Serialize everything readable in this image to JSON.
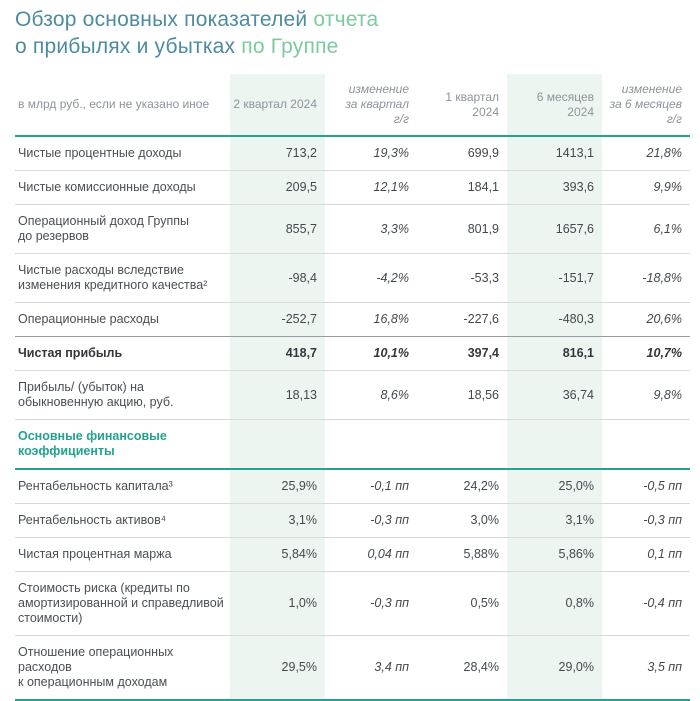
{
  "title": {
    "line1_main": "Обзор основных показателей ",
    "line1_accent": "отчета",
    "line2_main": "о прибылях и убытках ",
    "line2_accent": "по Группе"
  },
  "colors": {
    "title_main": "#4d8ba1",
    "title_accent": "#7bcc9b",
    "teal_line": "#23a38e",
    "section_text": "#23a38e",
    "shaded_column_bg": "#edf5f1",
    "header_text": "#8d939a",
    "body_text": "#43484d",
    "row_line": "#d7dadc",
    "strong_line": "#969ba1"
  },
  "table": {
    "unit_note": "в млрд руб., если не указано иное",
    "columns": [
      {
        "label": "2 квартал 2024",
        "shaded": true,
        "italic": false
      },
      {
        "label": "изменение\nза квартал\nг/г",
        "shaded": false,
        "italic": true
      },
      {
        "label": "1 квартал 2024",
        "shaded": false,
        "italic": false
      },
      {
        "label": "6 месяцев\n2024",
        "shaded": true,
        "italic": false
      },
      {
        "label": "изменение\nза 6 месяцев\nг/г",
        "shaded": false,
        "italic": true
      }
    ],
    "rows": [
      {
        "label": "Чистые процентные доходы",
        "values": [
          "713,2",
          "19,3%",
          "699,9",
          "1413,1",
          "21,8%"
        ]
      },
      {
        "label": "Чистые комиссионные доходы",
        "values": [
          "209,5",
          "12,1%",
          "184,1",
          "393,6",
          "9,9%"
        ]
      },
      {
        "label": "Операционный доход Группы\nдо резервов",
        "values": [
          "855,7",
          "3,3%",
          "801,9",
          "1657,6",
          "6,1%"
        ]
      },
      {
        "label": "Чистые расходы вследствие\nизменения кредитного качества²",
        "values": [
          "-98,4",
          "-4,2%",
          "-53,3",
          "-151,7",
          "-18,8%"
        ]
      },
      {
        "label": "Операционные расходы",
        "values": [
          "-252,7",
          "16,8%",
          "-227,6",
          "-480,3",
          "20,6%"
        ]
      },
      {
        "label": "Чистая прибыль",
        "bold": true,
        "values": [
          "418,7",
          "10,1%",
          "397,4",
          "816,1",
          "10,7%"
        ]
      },
      {
        "label": "Прибыль/ (убыток) на\nобыкновенную акцию, руб.",
        "values": [
          "18,13",
          "8,6%",
          "18,56",
          "36,74",
          "9,8%"
        ]
      },
      {
        "type": "section",
        "label": "Основные финансовые\nкоэффициенты",
        "values": [
          "",
          "",
          "",
          "",
          ""
        ]
      },
      {
        "label": "Рентабельность капитала³",
        "values": [
          "25,9%",
          "-0,1 пп",
          "24,2%",
          "25,0%",
          "-0,5 пп"
        ]
      },
      {
        "label": "Рентабельность активов⁴",
        "values": [
          "3,1%",
          "-0,3 пп",
          "3,0%",
          "3,1%",
          "-0,3 пп"
        ]
      },
      {
        "label": "Чистая процентная маржа",
        "values": [
          "5,84%",
          "0,04 пп",
          "5,88%",
          "5,86%",
          "0,1 пп"
        ]
      },
      {
        "label": "Стоимость риска (кредиты по\nамортизированной и справедливой\nстоимости)",
        "values": [
          "1,0%",
          "-0,3 пп",
          "0,5%",
          "0,8%",
          "-0,4 пп"
        ]
      },
      {
        "label": "Отношение операционных расходов\nк операционным доходам",
        "values": [
          "29,5%",
          "3,4 пп",
          "28,4%",
          "29,0%",
          "3,5 пп"
        ]
      }
    ]
  }
}
